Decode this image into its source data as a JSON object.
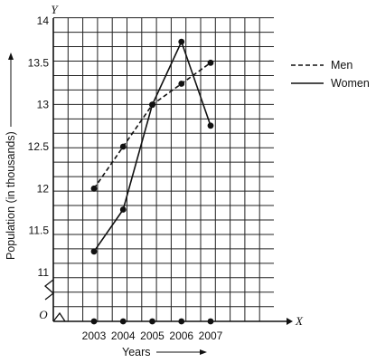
{
  "chart_data": {
    "type": "line",
    "x": [
      "2003",
      "2004",
      "2005",
      "2006",
      "2007"
    ],
    "series": [
      {
        "name": "Men",
        "style": "dashed",
        "values": [
          12.0,
          12.5,
          13.0,
          13.25,
          13.5
        ]
      },
      {
        "name": "Women",
        "style": "solid",
        "values": [
          11.25,
          11.75,
          13.0,
          13.75,
          12.75
        ]
      }
    ],
    "y_ticks": [
      "11",
      "11.5",
      "12",
      "12.5",
      "13",
      "13.5",
      "14"
    ],
    "ylim": [
      11,
      14
    ],
    "broken_y_axis": true,
    "origin_label": "O",
    "x_axis_letter": "X",
    "y_axis_letter": "Y",
    "xlabel": "Years",
    "ylabel": "Population (in thousands)",
    "grid": true,
    "legend_position": "right",
    "colors": {
      "line": "#111111",
      "grid": "#222222",
      "background": "#ffffff"
    }
  }
}
